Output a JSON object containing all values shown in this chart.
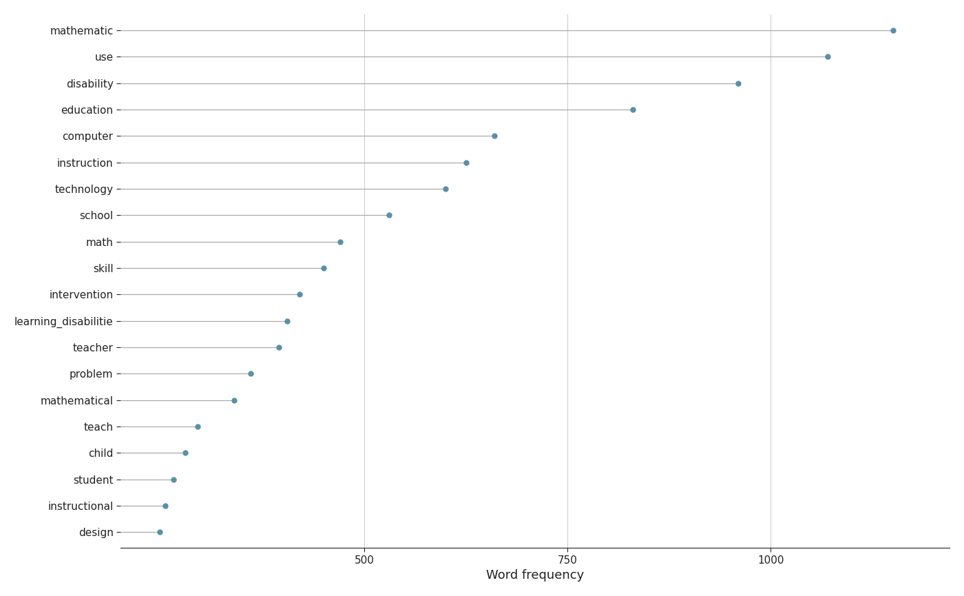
{
  "words": [
    "mathematic",
    "use",
    "disability",
    "education",
    "computer",
    "instruction",
    "technology",
    "school",
    "math",
    "skill",
    "intervention",
    "learning_disabilitie",
    "teacher",
    "problem",
    "mathematical",
    "teach",
    "child",
    "student",
    "instructional",
    "design"
  ],
  "frequencies": [
    1150,
    1070,
    960,
    830,
    660,
    625,
    600,
    530,
    470,
    450,
    420,
    405,
    395,
    360,
    340,
    295,
    280,
    265,
    255,
    248
  ],
  "dot_color": "#5a8fa8",
  "line_color": "#aaaaaa",
  "background_color": "#ffffff",
  "text_color": "#222222",
  "grid_color": "#ffffff",
  "grid_line_color": "#cccccc",
  "xlabel": "Word frequency",
  "xlim": [
    200,
    1220
  ],
  "xticks": [
    500,
    750,
    1000
  ],
  "figsize": [
    14.0,
    8.65
  ],
  "dpi": 100,
  "ylabel_fontsize": 11,
  "xlabel_fontsize": 13,
  "tick_fontsize": 11
}
